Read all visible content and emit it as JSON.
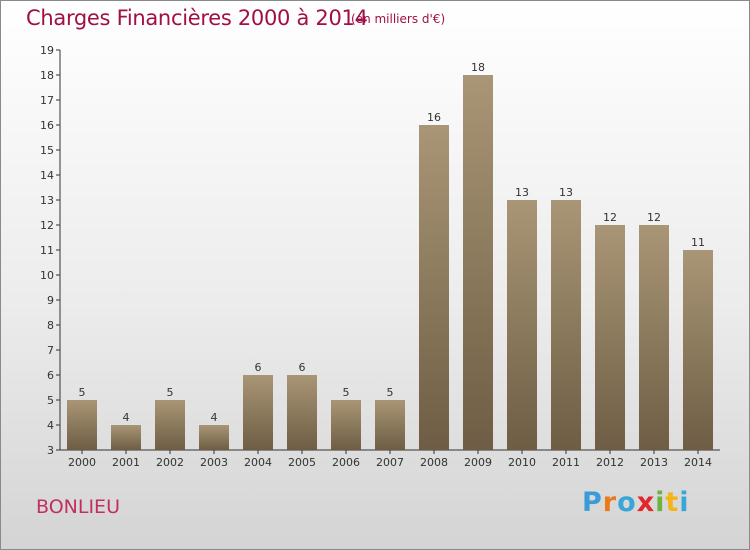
{
  "header": {
    "title": "Charges Financières 2000 à 2014",
    "subtitle": "(en milliers d'€)"
  },
  "footer": {
    "place": "BONLIEU",
    "logo_letters": [
      "P",
      "r",
      "o",
      "x",
      "i",
      "t",
      "i"
    ],
    "logo_colors": [
      "#3a9bd8",
      "#e97b1a",
      "#3aa6d8",
      "#e3262b",
      "#6db33f",
      "#f2b618",
      "#3aa6d8"
    ]
  },
  "colors": {
    "title": "#a01046",
    "bar_light": "#a99676",
    "bar_dark": "#6e5d44",
    "axis": "#333333"
  },
  "chart_data": {
    "type": "bar",
    "categories": [
      "2000",
      "2001",
      "2002",
      "2003",
      "2004",
      "2005",
      "2006",
      "2007",
      "2008",
      "2009",
      "2010",
      "2011",
      "2012",
      "2013",
      "2014"
    ],
    "values": [
      5,
      4,
      5,
      4,
      6,
      6,
      5,
      5,
      16,
      18,
      13,
      13,
      12,
      12,
      11
    ],
    "ylim": [
      3,
      19
    ],
    "yticks": [
      3,
      4,
      5,
      6,
      7,
      8,
      9,
      10,
      11,
      12,
      13,
      14,
      15,
      16,
      17,
      18,
      19
    ],
    "grid": false,
    "data_labels": true
  }
}
